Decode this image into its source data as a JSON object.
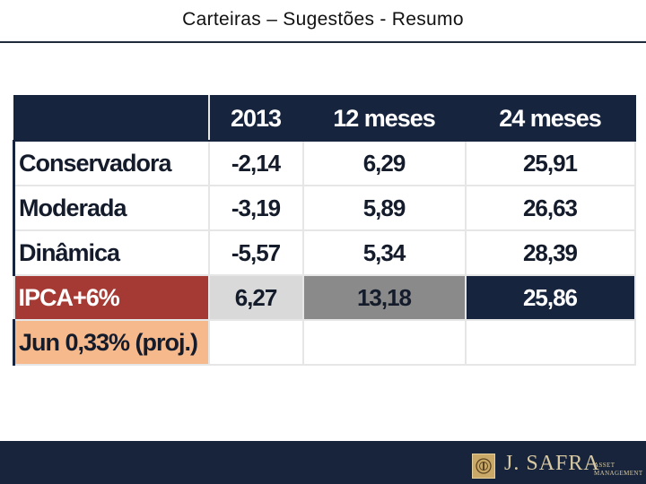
{
  "slide": {
    "title": "Carteiras – Sugestões - Resumo"
  },
  "table": {
    "headers": [
      "",
      "2013",
      "12 meses",
      "24 meses"
    ],
    "rows": [
      {
        "label": "Conservadora",
        "values": [
          "-2,14",
          "6,29",
          "25,91"
        ]
      },
      {
        "label": "Moderada",
        "values": [
          "-3,19",
          "5,89",
          "26,63"
        ]
      },
      {
        "label": "Dinâmica",
        "values": [
          "-5,57",
          "5,34",
          "28,39"
        ]
      },
      {
        "label": "IPCA+6%",
        "values": [
          "6,27",
          "13,18",
          "25,86"
        ]
      },
      {
        "label": "Jun 0,33% (proj.)",
        "values": [
          "",
          "",
          ""
        ]
      }
    ]
  },
  "colors": {
    "header_bg": "#16243d",
    "ipca_label_bg": "#a53a34",
    "ipca_2013_bg": "#d9d9d9",
    "ipca_12m_bg": "#8a8a8a",
    "ipca_24m_bg": "#16243d",
    "jun_label_bg": "#f6b98c",
    "footer_bg": "#17243b"
  },
  "footer": {
    "brand": "J. SAFRA",
    "sub_line1": "ASSET",
    "sub_line2": "MANAGEMENT",
    "logo_icon": "crest-icon"
  }
}
